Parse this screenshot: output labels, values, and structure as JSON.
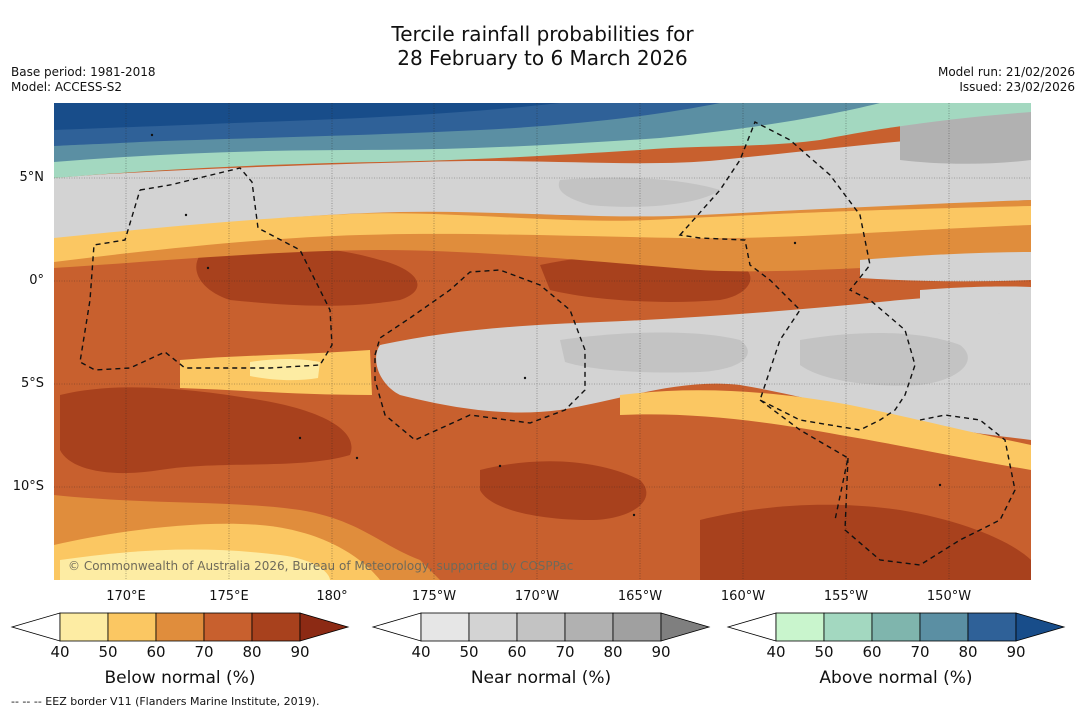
{
  "title_line1": "Tercile rainfall probabilities for",
  "title_line2": "28 February to 6 March 2026",
  "base_period": "Base period: 1981-2018",
  "model": "Model: ACCESS-S2",
  "model_run": "Model run: 21/02/2026",
  "issued": "Issued: 23/02/2026",
  "lat_labels": [
    "5°N",
    "0°",
    "5°S",
    "10°S"
  ],
  "lon_labels": [
    "170°E",
    "175°E",
    "180°",
    "175°W",
    "170°W",
    "165°W",
    "160°W",
    "155°W",
    "150°W"
  ],
  "copyright": "© Commonwealth of Australia 2026, Bureau of Meteorology, supported by COSPPac",
  "footnote": "--  --  -- EEZ border V11 (Flanders Marine Institute, 2019).",
  "colorbars": [
    {
      "title": "Below normal (%)",
      "ticks": [
        "40",
        "50",
        "60",
        "70",
        "80",
        "90"
      ],
      "colors": [
        "#ffffff",
        "#fdeca3",
        "#fbc762",
        "#e08d3c",
        "#c8602e",
        "#a8411d",
        "#8c2a14"
      ]
    },
    {
      "title": "Near normal (%)",
      "ticks": [
        "40",
        "50",
        "60",
        "70",
        "80",
        "90"
      ],
      "colors": [
        "#ffffff",
        "#e6e6e6",
        "#d3d3d3",
        "#c3c3c3",
        "#b1b1b1",
        "#a0a0a0",
        "#7f7f7f"
      ]
    },
    {
      "title": "Above normal (%)",
      "ticks": [
        "40",
        "50",
        "60",
        "70",
        "80",
        "90"
      ],
      "colors": [
        "#ffffff",
        "#c9f5cd",
        "#a3d8c0",
        "#7fb5ad",
        "#5b8fa3",
        "#2f6198",
        "#184d8a"
      ]
    }
  ]
}
